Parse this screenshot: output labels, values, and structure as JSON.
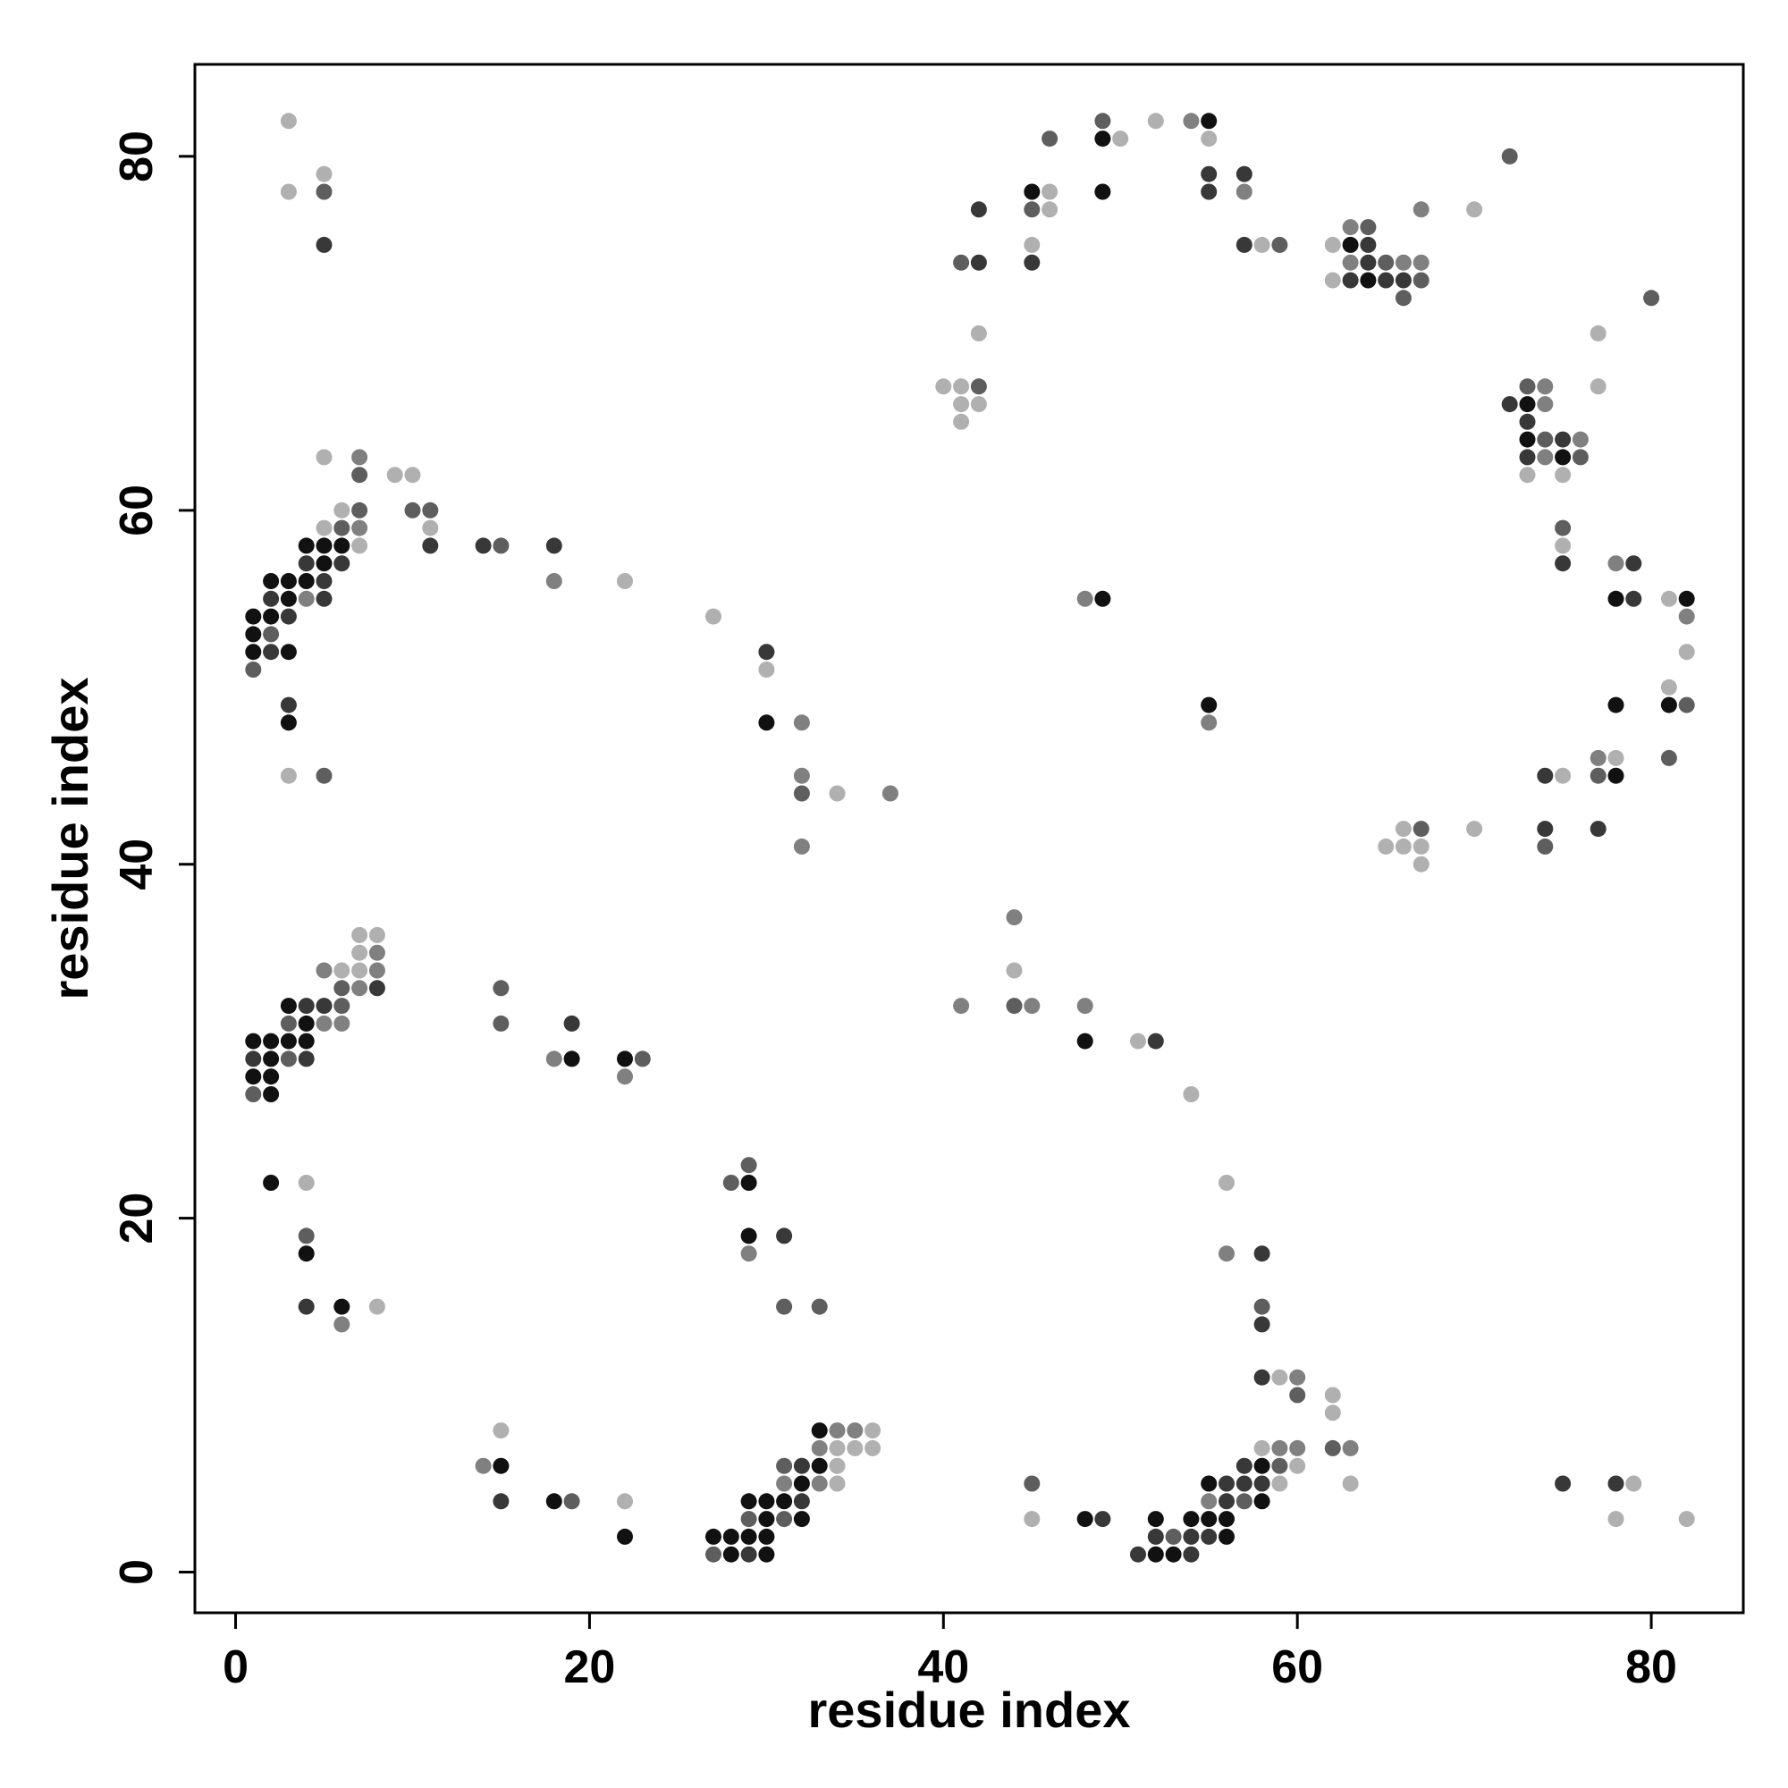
{
  "chart_data": {
    "type": "scatter",
    "title": "",
    "xlabel": "residue index",
    "ylabel": "residue index",
    "xlim": [
      -2.3,
      85.2
    ],
    "ylim": [
      -2.3,
      85.2
    ],
    "x_ticks": [
      0,
      20,
      40,
      60,
      80
    ],
    "y_ticks": [
      0,
      20,
      40,
      60,
      80
    ],
    "grid": false,
    "legend": "none",
    "colors": {
      "darkest": "#111111",
      "dark": "#383838",
      "mid": "#5e5e5e",
      "light": "#808080",
      "lightest": "#b0b0b0"
    },
    "points": [
      [
        1,
        54,
        0
      ],
      [
        1,
        53,
        0
      ],
      [
        1,
        52,
        0
      ],
      [
        1,
        51,
        2
      ],
      [
        2,
        56,
        0
      ],
      [
        2,
        55,
        1
      ],
      [
        2,
        54,
        0
      ],
      [
        2,
        53,
        2
      ],
      [
        2,
        52,
        1
      ],
      [
        3,
        56,
        0
      ],
      [
        3,
        55,
        0
      ],
      [
        3,
        54,
        1
      ],
      [
        3,
        52,
        0
      ],
      [
        3,
        49,
        1
      ],
      [
        3,
        48,
        0
      ],
      [
        4,
        58,
        0
      ],
      [
        4,
        57,
        1
      ],
      [
        4,
        56,
        0
      ],
      [
        4,
        55,
        3
      ],
      [
        5,
        58,
        0
      ],
      [
        5,
        57,
        0
      ],
      [
        5,
        56,
        1
      ],
      [
        5,
        55,
        1
      ],
      [
        5,
        59,
        4
      ],
      [
        6,
        58,
        0
      ],
      [
        6,
        57,
        1
      ],
      [
        6,
        59,
        2
      ],
      [
        6,
        60,
        4
      ],
      [
        7,
        60,
        2
      ],
      [
        7,
        59,
        3
      ],
      [
        7,
        58,
        4
      ],
      [
        7,
        62,
        2
      ],
      [
        7,
        63,
        3
      ],
      [
        5,
        63,
        4
      ],
      [
        9,
        62,
        4
      ],
      [
        10,
        62,
        4
      ],
      [
        10,
        60,
        2
      ],
      [
        11,
        60,
        2
      ],
      [
        11,
        59,
        4
      ],
      [
        11,
        58,
        1
      ],
      [
        14,
        58,
        1
      ],
      [
        15,
        58,
        2
      ],
      [
        18,
        58,
        1
      ],
      [
        18,
        56,
        3
      ],
      [
        22,
        56,
        4
      ],
      [
        27,
        54,
        4
      ],
      [
        3,
        45,
        4
      ],
      [
        5,
        45,
        2
      ],
      [
        3,
        78,
        4
      ],
      [
        3,
        82,
        4
      ],
      [
        5,
        79,
        4
      ],
      [
        5,
        78,
        2
      ],
      [
        5,
        75,
        1
      ],
      [
        1,
        30,
        0
      ],
      [
        1,
        29,
        1
      ],
      [
        1,
        28,
        0
      ],
      [
        1,
        27,
        2
      ],
      [
        2,
        30,
        0
      ],
      [
        2,
        29,
        0
      ],
      [
        2,
        28,
        0
      ],
      [
        2,
        27,
        0
      ],
      [
        3,
        32,
        0
      ],
      [
        3,
        31,
        2
      ],
      [
        3,
        30,
        0
      ],
      [
        3,
        29,
        2
      ],
      [
        4,
        32,
        1
      ],
      [
        4,
        31,
        0
      ],
      [
        4,
        30,
        0
      ],
      [
        4,
        29,
        1
      ],
      [
        5,
        34,
        3
      ],
      [
        5,
        32,
        1
      ],
      [
        5,
        31,
        3
      ],
      [
        6,
        34,
        4
      ],
      [
        6,
        33,
        2
      ],
      [
        6,
        32,
        2
      ],
      [
        6,
        31,
        3
      ],
      [
        7,
        36,
        4
      ],
      [
        7,
        35,
        4
      ],
      [
        7,
        34,
        4
      ],
      [
        7,
        33,
        3
      ],
      [
        8,
        36,
        4
      ],
      [
        8,
        35,
        3
      ],
      [
        8,
        34,
        3
      ],
      [
        8,
        33,
        1
      ],
      [
        15,
        33,
        2
      ],
      [
        15,
        31,
        2
      ],
      [
        18,
        29,
        3
      ],
      [
        19,
        31,
        1
      ],
      [
        19,
        29,
        0
      ],
      [
        22,
        29,
        0
      ],
      [
        22,
        28,
        3
      ],
      [
        23,
        29,
        2
      ],
      [
        2,
        22,
        0
      ],
      [
        4,
        22,
        4
      ],
      [
        4,
        19,
        2
      ],
      [
        4,
        18,
        0
      ],
      [
        4,
        15,
        1
      ],
      [
        6,
        15,
        0
      ],
      [
        6,
        14,
        3
      ],
      [
        8,
        15,
        4
      ],
      [
        14,
        6,
        3
      ],
      [
        15,
        8,
        4
      ],
      [
        15,
        6,
        0
      ],
      [
        15,
        4,
        1
      ],
      [
        18,
        4,
        0
      ],
      [
        19,
        4,
        2
      ],
      [
        22,
        4,
        4
      ],
      [
        22,
        2,
        0
      ],
      [
        27,
        2,
        0
      ],
      [
        27,
        1,
        2
      ],
      [
        28,
        2,
        0
      ],
      [
        28,
        1,
        0
      ],
      [
        29,
        4,
        0
      ],
      [
        29,
        3,
        2
      ],
      [
        29,
        2,
        0
      ],
      [
        29,
        1,
        1
      ],
      [
        30,
        4,
        0
      ],
      [
        30,
        3,
        0
      ],
      [
        30,
        2,
        0
      ],
      [
        30,
        1,
        0
      ],
      [
        31,
        6,
        2
      ],
      [
        31,
        5,
        3
      ],
      [
        31,
        4,
        0
      ],
      [
        31,
        3,
        2
      ],
      [
        32,
        6,
        1
      ],
      [
        32,
        5,
        0
      ],
      [
        32,
        4,
        1
      ],
      [
        32,
        3,
        0
      ],
      [
        33,
        8,
        0
      ],
      [
        33,
        7,
        3
      ],
      [
        33,
        6,
        0
      ],
      [
        33,
        5,
        3
      ],
      [
        34,
        8,
        3
      ],
      [
        34,
        7,
        4
      ],
      [
        34,
        6,
        4
      ],
      [
        34,
        5,
        4
      ],
      [
        35,
        8,
        3
      ],
      [
        35,
        7,
        4
      ],
      [
        36,
        8,
        4
      ],
      [
        36,
        7,
        4
      ],
      [
        28,
        22,
        2
      ],
      [
        29,
        23,
        2
      ],
      [
        29,
        22,
        0
      ],
      [
        29,
        19,
        0
      ],
      [
        29,
        18,
        3
      ],
      [
        31,
        19,
        1
      ],
      [
        31,
        15,
        2
      ],
      [
        33,
        15,
        2
      ],
      [
        30,
        52,
        1
      ],
      [
        30,
        51,
        4
      ],
      [
        30,
        48,
        0
      ],
      [
        32,
        48,
        3
      ],
      [
        32,
        45,
        3
      ],
      [
        32,
        44,
        2
      ],
      [
        34,
        44,
        4
      ],
      [
        37,
        44,
        3
      ],
      [
        32,
        41,
        3
      ],
      [
        40,
        67,
        4
      ],
      [
        41,
        67,
        4
      ],
      [
        41,
        66,
        4
      ],
      [
        41,
        65,
        4
      ],
      [
        42,
        67,
        2
      ],
      [
        42,
        66,
        4
      ],
      [
        42,
        70,
        4
      ],
      [
        41,
        74,
        2
      ],
      [
        42,
        74,
        1
      ],
      [
        42,
        77,
        1
      ],
      [
        45,
        78,
        0
      ],
      [
        45,
        77,
        2
      ],
      [
        46,
        78,
        4
      ],
      [
        46,
        77,
        4
      ],
      [
        45,
        75,
        4
      ],
      [
        45,
        74,
        1
      ],
      [
        46,
        81,
        2
      ],
      [
        49,
        82,
        2
      ],
      [
        49,
        81,
        0
      ],
      [
        50,
        81,
        4
      ],
      [
        49,
        78,
        0
      ],
      [
        52,
        82,
        4
      ],
      [
        54,
        82,
        3
      ],
      [
        55,
        82,
        0
      ],
      [
        55,
        81,
        4
      ],
      [
        55,
        79,
        1
      ],
      [
        55,
        78,
        1
      ],
      [
        57,
        79,
        1
      ],
      [
        57,
        78,
        3
      ],
      [
        57,
        75,
        1
      ],
      [
        58,
        75,
        4
      ],
      [
        59,
        75,
        2
      ],
      [
        62,
        75,
        4
      ],
      [
        62,
        73,
        4
      ],
      [
        63,
        76,
        3
      ],
      [
        63,
        75,
        0
      ],
      [
        63,
        74,
        3
      ],
      [
        63,
        73,
        1
      ],
      [
        64,
        76,
        2
      ],
      [
        64,
        75,
        1
      ],
      [
        64,
        74,
        1
      ],
      [
        64,
        73,
        0
      ],
      [
        65,
        74,
        2
      ],
      [
        65,
        73,
        1
      ],
      [
        66,
        74,
        3
      ],
      [
        66,
        73,
        1
      ],
      [
        66,
        72,
        2
      ],
      [
        67,
        74,
        3
      ],
      [
        67,
        73,
        2
      ],
      [
        67,
        77,
        3
      ],
      [
        70,
        77,
        4
      ],
      [
        72,
        80,
        2
      ],
      [
        72,
        66,
        1
      ],
      [
        73,
        67,
        2
      ],
      [
        73,
        66,
        0
      ],
      [
        73,
        65,
        1
      ],
      [
        73,
        64,
        0
      ],
      [
        73,
        63,
        1
      ],
      [
        73,
        62,
        4
      ],
      [
        74,
        67,
        3
      ],
      [
        74,
        66,
        3
      ],
      [
        74,
        64,
        2
      ],
      [
        74,
        63,
        3
      ],
      [
        75,
        64,
        1
      ],
      [
        75,
        63,
        0
      ],
      [
        75,
        62,
        4
      ],
      [
        76,
        64,
        3
      ],
      [
        76,
        63,
        2
      ],
      [
        77,
        67,
        4
      ],
      [
        77,
        70,
        4
      ],
      [
        80,
        72,
        2
      ],
      [
        75,
        59,
        2
      ],
      [
        75,
        58,
        4
      ],
      [
        75,
        57,
        1
      ],
      [
        78,
        57,
        3
      ],
      [
        79,
        57,
        1
      ],
      [
        78,
        55,
        0
      ],
      [
        79,
        55,
        1
      ],
      [
        81,
        55,
        4
      ],
      [
        82,
        55,
        0
      ],
      [
        82,
        54,
        3
      ],
      [
        82,
        52,
        4
      ],
      [
        81,
        50,
        4
      ],
      [
        81,
        49,
        0
      ],
      [
        82,
        49,
        2
      ],
      [
        81,
        46,
        2
      ],
      [
        78,
        49,
        0
      ],
      [
        74,
        45,
        1
      ],
      [
        75,
        45,
        4
      ],
      [
        77,
        46,
        3
      ],
      [
        78,
        46,
        4
      ],
      [
        77,
        45,
        2
      ],
      [
        78,
        45,
        0
      ],
      [
        74,
        42,
        1
      ],
      [
        74,
        41,
        2
      ],
      [
        77,
        42,
        1
      ],
      [
        70,
        42,
        4
      ],
      [
        65,
        41,
        4
      ],
      [
        66,
        42,
        4
      ],
      [
        66,
        41,
        4
      ],
      [
        67,
        42,
        2
      ],
      [
        67,
        41,
        4
      ],
      [
        67,
        40,
        4
      ],
      [
        48,
        55,
        3
      ],
      [
        49,
        55,
        0
      ],
      [
        55,
        49,
        0
      ],
      [
        55,
        48,
        3
      ],
      [
        44,
        37,
        3
      ],
      [
        44,
        34,
        4
      ],
      [
        41,
        32,
        3
      ],
      [
        44,
        32,
        2
      ],
      [
        45,
        32,
        3
      ],
      [
        48,
        32,
        3
      ],
      [
        48,
        30,
        0
      ],
      [
        51,
        30,
        4
      ],
      [
        52,
        30,
        1
      ],
      [
        54,
        27,
        4
      ],
      [
        56,
        22,
        4
      ],
      [
        56,
        18,
        3
      ],
      [
        58,
        18,
        1
      ],
      [
        58,
        15,
        2
      ],
      [
        58,
        14,
        1
      ],
      [
        58,
        11,
        1
      ],
      [
        59,
        11,
        4
      ],
      [
        60,
        11,
        3
      ],
      [
        60,
        10,
        2
      ],
      [
        62,
        10,
        4
      ],
      [
        62,
        9,
        4
      ],
      [
        62,
        7,
        2
      ],
      [
        63,
        7,
        3
      ],
      [
        63,
        5,
        4
      ],
      [
        58,
        7,
        4
      ],
      [
        59,
        7,
        3
      ],
      [
        60,
        7,
        3
      ],
      [
        59,
        6,
        2
      ],
      [
        60,
        6,
        4
      ],
      [
        57,
        6,
        1
      ],
      [
        58,
        6,
        0
      ],
      [
        56,
        5,
        1
      ],
      [
        57,
        5,
        1
      ],
      [
        58,
        5,
        1
      ],
      [
        59,
        5,
        4
      ],
      [
        55,
        5,
        0
      ],
      [
        55,
        4,
        3
      ],
      [
        56,
        4,
        1
      ],
      [
        57,
        4,
        2
      ],
      [
        58,
        4,
        0
      ],
      [
        54,
        3,
        0
      ],
      [
        55,
        3,
        0
      ],
      [
        56,
        3,
        0
      ],
      [
        55,
        2,
        1
      ],
      [
        56,
        2,
        0
      ],
      [
        52,
        3,
        0
      ],
      [
        52,
        2,
        1
      ],
      [
        53,
        2,
        2
      ],
      [
        54,
        2,
        1
      ],
      [
        51,
        1,
        1
      ],
      [
        52,
        1,
        0
      ],
      [
        53,
        1,
        0
      ],
      [
        54,
        1,
        1
      ],
      [
        48,
        3,
        0
      ],
      [
        49,
        3,
        1
      ],
      [
        45,
        5,
        2
      ],
      [
        45,
        3,
        4
      ],
      [
        75,
        5,
        1
      ],
      [
        78,
        5,
        1
      ],
      [
        79,
        5,
        4
      ],
      [
        78,
        3,
        4
      ],
      [
        82,
        3,
        4
      ]
    ]
  }
}
